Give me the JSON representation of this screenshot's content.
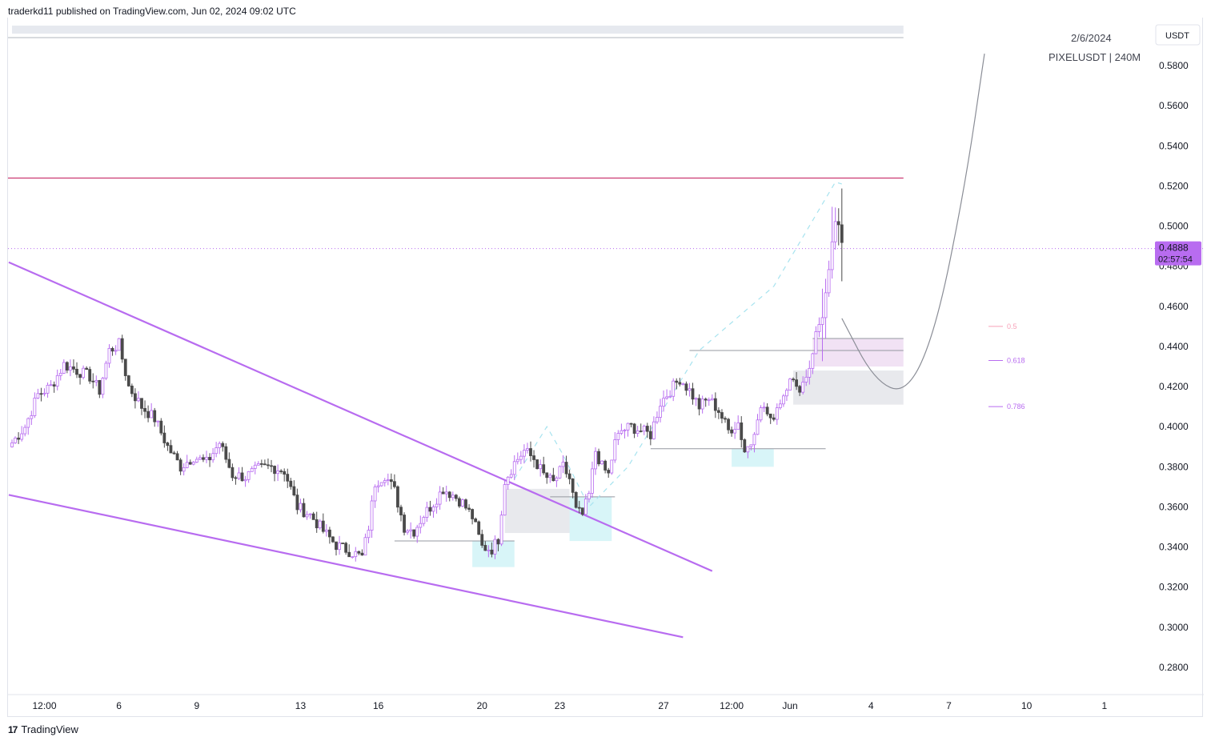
{
  "header": {
    "publish_text": "traderkd11 published on TradingView.com, Jun 02, 2024 09:02 UTC"
  },
  "footer": {
    "logo_icon": "tradingview-logo-icon",
    "brand": "TradingView"
  },
  "chart_data": {
    "type": "candlestick",
    "symbol": "PIXELUSDT | 240M",
    "date_label": "2/6/2024",
    "currency": "USDT",
    "last_price": "0.4888",
    "countdown": "02:57:54",
    "ylim": [
      0.268,
      0.6
    ],
    "y_ticks": [
      "0.5800",
      "0.5600",
      "0.5400",
      "0.5200",
      "0.5000",
      "0.4800",
      "0.4600",
      "0.4400",
      "0.4200",
      "0.4000",
      "0.3800",
      "0.3600",
      "0.3400",
      "0.3200",
      "0.3000",
      "0.2800"
    ],
    "x_ticks": [
      {
        "label": "12:00",
        "i": 10
      },
      {
        "label": "6",
        "i": 33
      },
      {
        "label": "9",
        "i": 57
      },
      {
        "label": "13",
        "i": 89
      },
      {
        "label": "16",
        "i": 113
      },
      {
        "label": "20",
        "i": 145
      },
      {
        "label": "23",
        "i": 169
      },
      {
        "label": "27",
        "i": 201
      },
      {
        "label": "12:00",
        "i": 222
      },
      {
        "label": "Jun",
        "i": 240
      },
      {
        "label": "4",
        "i": 265
      },
      {
        "label": "7",
        "i": 289
      },
      {
        "label": "10",
        "i": 313
      },
      {
        "label": "1",
        "i": 337
      }
    ],
    "candles_anchor": [
      [
        0,
        0.392
      ],
      [
        4,
        0.4
      ],
      [
        8,
        0.416
      ],
      [
        12,
        0.42
      ],
      [
        16,
        0.431
      ],
      [
        20,
        0.428
      ],
      [
        24,
        0.425
      ],
      [
        27,
        0.418
      ],
      [
        30,
        0.438
      ],
      [
        33,
        0.441
      ],
      [
        36,
        0.42
      ],
      [
        40,
        0.41
      ],
      [
        44,
        0.404
      ],
      [
        48,
        0.39
      ],
      [
        52,
        0.38
      ],
      [
        56,
        0.385
      ],
      [
        60,
        0.382
      ],
      [
        64,
        0.392
      ],
      [
        68,
        0.376
      ],
      [
        72,
        0.375
      ],
      [
        76,
        0.379
      ],
      [
        80,
        0.38
      ],
      [
        84,
        0.378
      ],
      [
        88,
        0.36
      ],
      [
        92,
        0.356
      ],
      [
        96,
        0.348
      ],
      [
        100,
        0.341
      ],
      [
        104,
        0.338
      ],
      [
        108,
        0.335
      ],
      [
        110,
        0.35
      ],
      [
        112,
        0.372
      ],
      [
        115,
        0.376
      ],
      [
        118,
        0.368
      ],
      [
        121,
        0.35
      ],
      [
        124,
        0.348
      ],
      [
        127,
        0.356
      ],
      [
        130,
        0.362
      ],
      [
        133,
        0.369
      ],
      [
        136,
        0.366
      ],
      [
        139,
        0.362
      ],
      [
        142,
        0.355
      ],
      [
        145,
        0.34
      ],
      [
        148,
        0.339
      ],
      [
        150,
        0.344
      ],
      [
        152,
        0.373
      ],
      [
        155,
        0.382
      ],
      [
        158,
        0.388
      ],
      [
        161,
        0.384
      ],
      [
        164,
        0.376
      ],
      [
        167,
        0.372
      ],
      [
        170,
        0.38
      ],
      [
        172,
        0.374
      ],
      [
        174,
        0.358
      ],
      [
        176,
        0.356
      ],
      [
        178,
        0.366
      ],
      [
        180,
        0.388
      ],
      [
        182,
        0.38
      ],
      [
        184,
        0.376
      ],
      [
        186,
        0.392
      ],
      [
        188,
        0.398
      ],
      [
        191,
        0.4
      ],
      [
        194,
        0.398
      ],
      [
        197,
        0.396
      ],
      [
        200,
        0.412
      ],
      [
        203,
        0.418
      ],
      [
        206,
        0.424
      ],
      [
        209,
        0.418
      ],
      [
        212,
        0.41
      ],
      [
        215,
        0.414
      ],
      [
        218,
        0.408
      ],
      [
        221,
        0.398
      ],
      [
        224,
        0.402
      ],
      [
        226,
        0.388
      ],
      [
        228,
        0.392
      ],
      [
        230,
        0.406
      ],
      [
        232,
        0.41
      ],
      [
        234,
        0.402
      ],
      [
        236,
        0.41
      ],
      [
        238,
        0.416
      ],
      [
        240,
        0.426
      ],
      [
        242,
        0.418
      ],
      [
        244,
        0.422
      ],
      [
        246,
        0.43
      ],
      [
        248,
        0.446
      ],
      [
        250,
        0.456
      ],
      [
        252,
        0.476
      ],
      [
        254,
        0.503
      ],
      [
        255,
        0.498
      ],
      [
        256,
        0.49
      ]
    ],
    "channel_lines": [
      {
        "from": [
          -1,
          0.482
        ],
        "to": [
          216,
          0.328
        ],
        "color": "#b86cf0"
      },
      {
        "from": [
          -1,
          0.366
        ],
        "to": [
          207,
          0.295
        ],
        "color": "#b86cf0"
      }
    ],
    "horizontal_lines": [
      {
        "price": 0.594,
        "color": "#b2b5be",
        "style": "solid"
      },
      {
        "price": 0.524,
        "color": "#c2185b",
        "style": "solid"
      },
      {
        "price": 0.4888,
        "color": "#b86cf0",
        "style": "dotted",
        "full": true
      }
    ],
    "fib_levels": [
      {
        "label": "0.5",
        "price": 0.45,
        "color": "#f7a1b8"
      },
      {
        "label": "0.618",
        "price": 0.433,
        "color": "#b86cf0"
      },
      {
        "label": "0.786",
        "price": 0.41,
        "color": "#b86cf0"
      }
    ],
    "zones": [
      {
        "i0": 152,
        "i1": 172,
        "p_top": 0.369,
        "p_bot": 0.347,
        "color": "#d1d4dc",
        "opacity": 0.5
      },
      {
        "i0": 142,
        "i1": 155,
        "p_top": 0.343,
        "p_bot": 0.33,
        "color": "#b2ebf2",
        "opacity": 0.5
      },
      {
        "i0": 172,
        "i1": 185,
        "p_top": 0.365,
        "p_bot": 0.343,
        "color": "#b2ebf2",
        "opacity": 0.5
      },
      {
        "i0": 222,
        "i1": 235,
        "p_top": 0.389,
        "p_bot": 0.38,
        "color": "#b2ebf2",
        "opacity": 0.5
      },
      {
        "i0": 247,
        "i1": 275,
        "p_top": 0.444,
        "p_bot": 0.43,
        "color": "#e1bee7",
        "opacity": 0.45
      },
      {
        "i0": 241,
        "i1": 275,
        "p_top": 0.428,
        "p_bot": 0.411,
        "color": "#d1d4dc",
        "opacity": 0.5
      },
      {
        "i0": 0,
        "i1": 275,
        "p_top": 0.6,
        "p_bot": 0.596,
        "color": "#e0e3eb",
        "opacity": 0.8
      }
    ],
    "structure_lines": [
      {
        "i0": 118,
        "i1": 155,
        "price": 0.343
      },
      {
        "i0": 166,
        "i1": 186,
        "price": 0.365
      },
      {
        "i0": 197,
        "i1": 251,
        "price": 0.389
      },
      {
        "i0": 209,
        "i1": 275,
        "price": 0.438
      },
      {
        "i0": 247,
        "i1": 275,
        "price": 0.444
      }
    ],
    "dashed_path": [
      [
        155,
        0.374
      ],
      [
        165,
        0.4
      ],
      [
        170,
        0.386
      ],
      [
        178,
        0.36
      ],
      [
        190,
        0.38
      ],
      [
        212,
        0.438
      ],
      [
        235,
        0.47
      ],
      [
        254,
        0.522
      ],
      [
        256,
        0.521
      ]
    ],
    "projection_path": [
      [
        256,
        0.454
      ],
      [
        266,
        0.423
      ],
      [
        276,
        0.416
      ],
      [
        285,
        0.448
      ],
      [
        294,
        0.52
      ],
      [
        300,
        0.586
      ]
    ]
  }
}
